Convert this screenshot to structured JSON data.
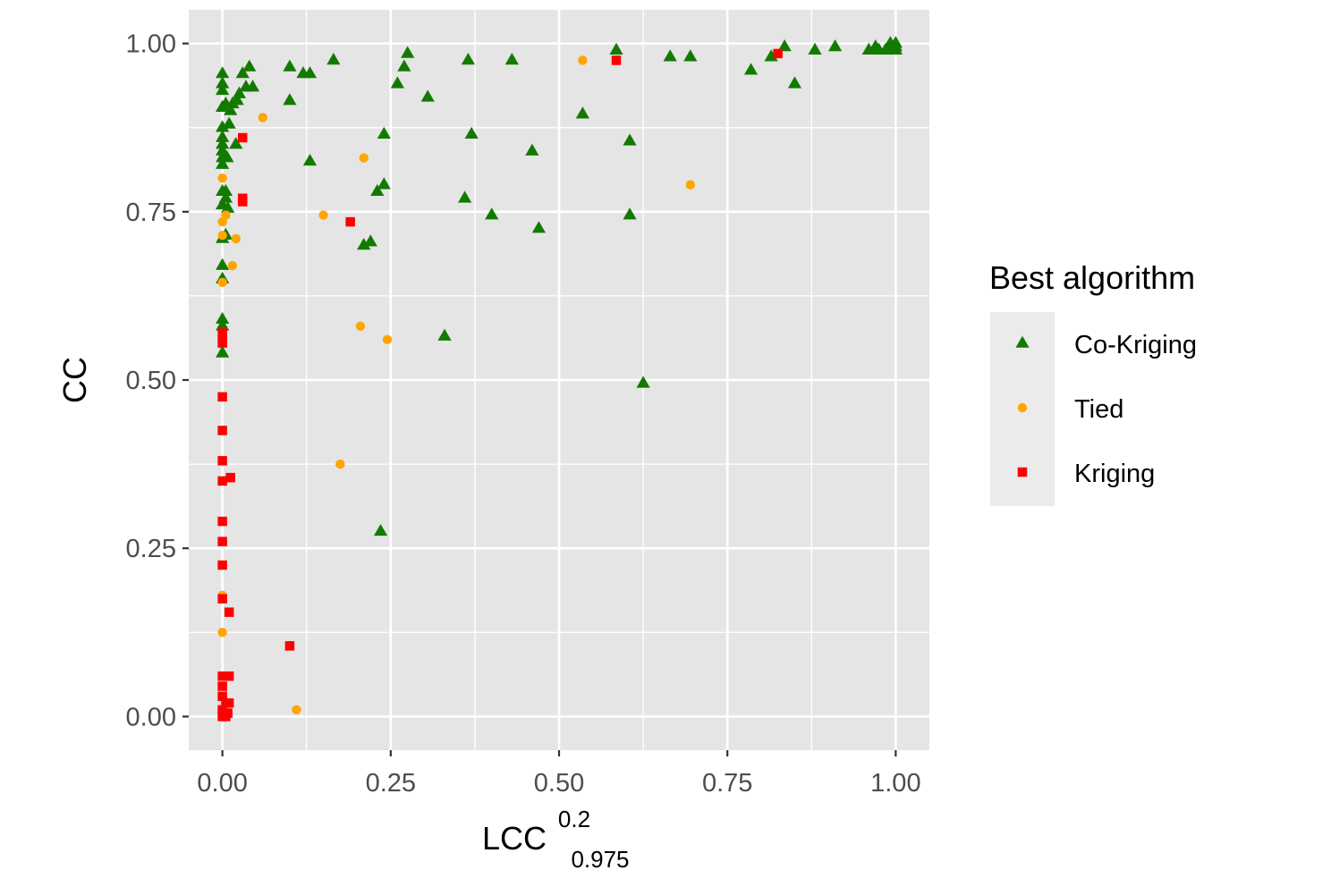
{
  "chart_data": {
    "type": "scatter",
    "title": "",
    "xlabel": {
      "base": "LCC",
      "superscript": "0.2",
      "subscript": "0.975"
    },
    "ylabel": "CC",
    "xlim": [
      -0.05,
      1.05
    ],
    "ylim": [
      -0.05,
      1.05
    ],
    "x_ticks": [
      0,
      0.25,
      0.5,
      0.75,
      1
    ],
    "x_tick_labels": [
      "0.00",
      "0.25",
      "0.50",
      "0.75",
      "1.00"
    ],
    "y_ticks": [
      0,
      0.25,
      0.5,
      0.75,
      1
    ],
    "y_tick_labels": [
      "0.00",
      "0.25",
      "0.50",
      "0.75",
      "1.00"
    ],
    "grid": true,
    "legend": {
      "title": "Best algorithm",
      "placement": "right"
    },
    "colors": {
      "panel": "#e5e5e5",
      "grid": "#ffffff",
      "co_kriging": "#137a00",
      "tied": "#ffa500",
      "kriging": "#ff0000"
    },
    "series": [
      {
        "name": "Co-Kriging",
        "marker": "triangle",
        "color": "#137a00",
        "points": [
          [
            0.0,
            0.955
          ],
          [
            0.0,
            0.94
          ],
          [
            0.0,
            0.93
          ],
          [
            0.0,
            0.905
          ],
          [
            0.0,
            0.875
          ],
          [
            0.0,
            0.86
          ],
          [
            0.0,
            0.85
          ],
          [
            0.0,
            0.84
          ],
          [
            0.0,
            0.83
          ],
          [
            0.0,
            0.82
          ],
          [
            0.0,
            0.78
          ],
          [
            0.0,
            0.76
          ],
          [
            0.0,
            0.71
          ],
          [
            0.0,
            0.67
          ],
          [
            0.0,
            0.65
          ],
          [
            0.0,
            0.59
          ],
          [
            0.0,
            0.58
          ],
          [
            0.0,
            0.54
          ],
          [
            0.005,
            0.91
          ],
          [
            0.005,
            0.78
          ],
          [
            0.005,
            0.77
          ],
          [
            0.005,
            0.715
          ],
          [
            0.007,
            0.83
          ],
          [
            0.008,
            0.755
          ],
          [
            0.01,
            0.88
          ],
          [
            0.012,
            0.9
          ],
          [
            0.015,
            0.91
          ],
          [
            0.02,
            0.85
          ],
          [
            0.022,
            0.915
          ],
          [
            0.025,
            0.925
          ],
          [
            0.03,
            0.955
          ],
          [
            0.035,
            0.935
          ],
          [
            0.04,
            0.965
          ],
          [
            0.045,
            0.935
          ],
          [
            0.1,
            0.965
          ],
          [
            0.1,
            0.915
          ],
          [
            0.12,
            0.955
          ],
          [
            0.13,
            0.955
          ],
          [
            0.13,
            0.825
          ],
          [
            0.165,
            0.975
          ],
          [
            0.21,
            0.7
          ],
          [
            0.22,
            0.705
          ],
          [
            0.23,
            0.78
          ],
          [
            0.24,
            0.79
          ],
          [
            0.24,
            0.865
          ],
          [
            0.235,
            0.275
          ],
          [
            0.26,
            0.94
          ],
          [
            0.27,
            0.965
          ],
          [
            0.275,
            0.985
          ],
          [
            0.305,
            0.92
          ],
          [
            0.33,
            0.565
          ],
          [
            0.36,
            0.77
          ],
          [
            0.365,
            0.975
          ],
          [
            0.37,
            0.865
          ],
          [
            0.4,
            0.745
          ],
          [
            0.43,
            0.975
          ],
          [
            0.46,
            0.84
          ],
          [
            0.47,
            0.725
          ],
          [
            0.535,
            0.895
          ],
          [
            0.585,
            0.99
          ],
          [
            0.605,
            0.745
          ],
          [
            0.605,
            0.855
          ],
          [
            0.625,
            0.495
          ],
          [
            0.665,
            0.98
          ],
          [
            0.695,
            0.98
          ],
          [
            0.785,
            0.96
          ],
          [
            0.815,
            0.98
          ],
          [
            0.835,
            0.995
          ],
          [
            0.85,
            0.94
          ],
          [
            0.88,
            0.99
          ],
          [
            0.91,
            0.995
          ],
          [
            0.96,
            0.99
          ],
          [
            0.97,
            0.995
          ],
          [
            0.975,
            0.99
          ],
          [
            0.985,
            0.99
          ],
          [
            0.99,
            0.995
          ],
          [
            0.992,
            1.0
          ],
          [
            0.995,
            0.99
          ],
          [
            0.998,
            0.995
          ],
          [
            1.0,
            1.0
          ],
          [
            1.0,
            0.99
          ],
          [
            1.0,
            0.995
          ]
        ]
      },
      {
        "name": "Tied",
        "marker": "circle",
        "color": "#ffa500",
        "points": [
          [
            0.0,
            0.8
          ],
          [
            0.0,
            0.735
          ],
          [
            0.0,
            0.715
          ],
          [
            0.0,
            0.645
          ],
          [
            0.0,
            0.18
          ],
          [
            0.0,
            0.125
          ],
          [
            0.005,
            0.745
          ],
          [
            0.015,
            0.67
          ],
          [
            0.02,
            0.71
          ],
          [
            0.06,
            0.89
          ],
          [
            0.11,
            0.01
          ],
          [
            0.15,
            0.745
          ],
          [
            0.175,
            0.375
          ],
          [
            0.205,
            0.58
          ],
          [
            0.21,
            0.83
          ],
          [
            0.245,
            0.56
          ],
          [
            0.535,
            0.975
          ],
          [
            0.695,
            0.79
          ]
        ]
      },
      {
        "name": "Kriging",
        "marker": "square",
        "color": "#ff0000",
        "points": [
          [
            0.0,
            0.57
          ],
          [
            0.0,
            0.56
          ],
          [
            0.0,
            0.555
          ],
          [
            0.0,
            0.475
          ],
          [
            0.0,
            0.425
          ],
          [
            0.0,
            0.38
          ],
          [
            0.0,
            0.35
          ],
          [
            0.0,
            0.29
          ],
          [
            0.0,
            0.26
          ],
          [
            0.0,
            0.225
          ],
          [
            0.0,
            0.175
          ],
          [
            0.0,
            0.06
          ],
          [
            0.0,
            0.045
          ],
          [
            0.0,
            0.03
          ],
          [
            0.0,
            0.01
          ],
          [
            0.0,
            0.005
          ],
          [
            0.0,
            0.0
          ],
          [
            0.005,
            0.02
          ],
          [
            0.005,
            0.0
          ],
          [
            0.008,
            0.005
          ],
          [
            0.01,
            0.06
          ],
          [
            0.01,
            0.155
          ],
          [
            0.01,
            0.02
          ],
          [
            0.012,
            0.355
          ],
          [
            0.03,
            0.86
          ],
          [
            0.03,
            0.77
          ],
          [
            0.03,
            0.765
          ],
          [
            0.1,
            0.105
          ],
          [
            0.19,
            0.735
          ],
          [
            0.585,
            0.975
          ],
          [
            0.825,
            0.985
          ]
        ]
      }
    ]
  }
}
